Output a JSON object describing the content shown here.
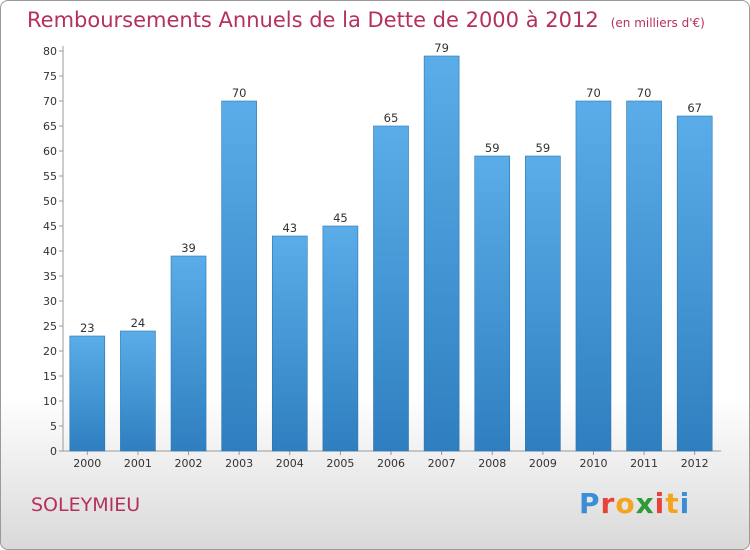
{
  "header": {
    "title": "Remboursements Annuels de la Dette de 2000 à 2012",
    "unit": "(en milliers d'€)"
  },
  "footer": {
    "commune": "SOLEYMIEU",
    "logo_letters": [
      "P",
      "r",
      "o",
      "x",
      "i",
      "t",
      "i"
    ],
    "logo_colors": [
      "#3a8ed8",
      "#e8423d",
      "#f2a51f",
      "#2f9a3a",
      "#e8423d",
      "#f2a51f",
      "#3a8ed8"
    ]
  },
  "chart_data": {
    "type": "bar",
    "title": "Remboursements Annuels de la Dette de 2000 à 2012",
    "categories": [
      "2000",
      "2001",
      "2002",
      "2003",
      "2004",
      "2005",
      "2006",
      "2007",
      "2008",
      "2009",
      "2010",
      "2011",
      "2012"
    ],
    "values": [
      23,
      24,
      39,
      70,
      43,
      45,
      65,
      79,
      59,
      59,
      70,
      70,
      67
    ],
    "ylim": [
      0,
      80
    ],
    "yticks": [
      0,
      5,
      10,
      15,
      20,
      25,
      30,
      35,
      40,
      45,
      50,
      55,
      60,
      65,
      70,
      75,
      80
    ],
    "grid": false,
    "bar_color": "#4a9fe0",
    "data_labels": true
  }
}
